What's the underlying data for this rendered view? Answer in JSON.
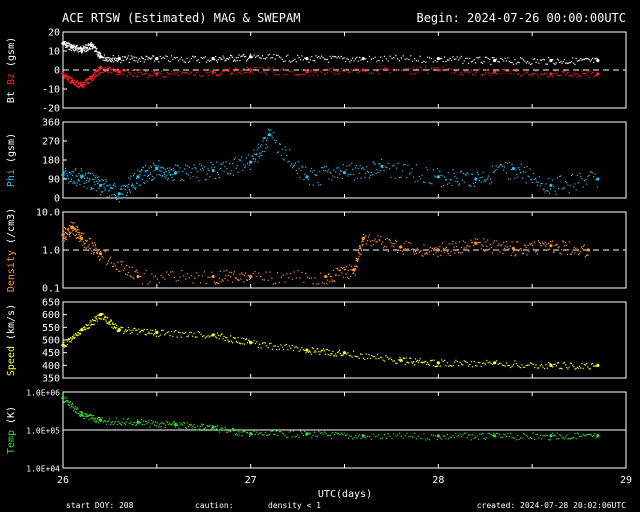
{
  "header": {
    "title": "ACE RTSW (Estimated) MAG & SWEPAM",
    "begin": "Begin: 2024-07-26 00:00:00UTC"
  },
  "footer": {
    "start_doy": "start DOY: 208",
    "caution": "caution:",
    "density_note": "density < 1",
    "created": "created: 2024-07-28 20:02:06UTC"
  },
  "colors": {
    "bt": "#ffffff",
    "bz": "#ff2020",
    "phi": "#33bbee",
    "density": "#ff9933",
    "speed": "#ffff33",
    "temp": "#33dd33",
    "frame": "#ffffff",
    "background": "#000000"
  },
  "chart_data": {
    "type": "scatter",
    "x": {
      "label": "UTC(days)",
      "range": [
        26,
        29
      ],
      "ticks": [
        "26",
        "27",
        "28",
        "29"
      ]
    },
    "panels": [
      {
        "id": "mag",
        "ylabel_parts": [
          "Bt",
          "Bz",
          "(gsm)"
        ],
        "ylim": [
          -20,
          20
        ],
        "yticks": [
          "20",
          "10",
          "0",
          "-10",
          "-20"
        ],
        "reference_line": 0,
        "series": [
          {
            "name": "Bt",
            "color": "#ffffff",
            "x": [
              26.0,
              26.05,
              26.1,
              26.15,
              26.2,
              26.3,
              26.5,
              26.8,
              27.0,
              27.3,
              27.6,
              28.0,
              28.3,
              28.6,
              28.85
            ],
            "y": [
              14,
              12,
              11,
              13,
              7,
              6,
              6,
              6,
              7,
              6,
              6,
              6,
              5,
              5,
              5
            ]
          },
          {
            "name": "Bz",
            "color": "#ff2020",
            "x": [
              26.0,
              26.05,
              26.1,
              26.15,
              26.2,
              26.3,
              26.5,
              26.8,
              27.0,
              27.3,
              27.6,
              28.0,
              28.3,
              28.6,
              28.85
            ],
            "y": [
              -2,
              -6,
              -8,
              -4,
              1,
              -1,
              -2,
              -1,
              0,
              -1,
              0,
              0,
              -1,
              -2,
              -2
            ]
          }
        ]
      },
      {
        "id": "phi",
        "ylabel_parts": [
          "Phi",
          "(gsm)"
        ],
        "ylim": [
          0,
          360
        ],
        "yticks": [
          "360",
          "270",
          "180",
          "90",
          "0"
        ],
        "series": [
          {
            "name": "Phi",
            "color": "#33bbee",
            "x": [
              26.0,
              26.1,
              26.2,
              26.3,
              26.4,
              26.5,
              26.6,
              26.8,
              27.0,
              27.1,
              27.3,
              27.5,
              27.7,
              28.0,
              28.2,
              28.4,
              28.6,
              28.85
            ],
            "y": [
              110,
              100,
              60,
              20,
              100,
              140,
              120,
              130,
              170,
              300,
              100,
              120,
              150,
              100,
              90,
              140,
              60,
              90
            ]
          }
        ]
      },
      {
        "id": "density",
        "ylabel_parts": [
          "Density",
          "(/cm3)"
        ],
        "yscale": "log",
        "ylim": [
          0.1,
          10
        ],
        "yticks": [
          "10.0",
          "1.0",
          "0.1"
        ],
        "reference_line": 1.0,
        "series": [
          {
            "name": "Density",
            "color": "#ff9933",
            "x": [
              26.0,
              26.05,
              26.1,
              26.2,
              26.4,
              26.8,
              27.0,
              27.4,
              27.55,
              27.6,
              27.8,
              28.0,
              28.2,
              28.4,
              28.6,
              28.8
            ],
            "y": [
              2.5,
              4.0,
              2.0,
              0.8,
              0.2,
              0.2,
              0.2,
              0.2,
              0.3,
              2.0,
              1.2,
              1.0,
              1.5,
              1.1,
              1.3,
              1.0
            ]
          }
        ]
      },
      {
        "id": "speed",
        "ylabel_parts": [
          "Speed",
          "(km/s)"
        ],
        "ylim": [
          350,
          650
        ],
        "yticks": [
          "650",
          "600",
          "550",
          "500",
          "450",
          "400",
          "350"
        ],
        "series": [
          {
            "name": "Speed",
            "color": "#ffff33",
            "x": [
              26.0,
              26.1,
              26.2,
              26.3,
              26.5,
              26.8,
              27.0,
              27.3,
              27.5,
              27.8,
              28.0,
              28.3,
              28.6,
              28.85
            ],
            "y": [
              480,
              540,
              600,
              540,
              530,
              520,
              490,
              460,
              450,
              420,
              410,
              410,
              400,
              400
            ]
          }
        ]
      },
      {
        "id": "temp",
        "ylabel_parts": [
          "Temp",
          "(K)"
        ],
        "yscale": "log",
        "ylim": [
          10000,
          1000000
        ],
        "yticks": [
          "1.0E+06",
          "1.0E+05",
          "1.0E+04"
        ],
        "reference_line": 100000,
        "series": [
          {
            "name": "Temp",
            "color": "#33dd33",
            "x": [
              26.0,
              26.1,
              26.2,
              26.4,
              26.6,
              26.8,
              27.0,
              27.3,
              27.6,
              28.0,
              28.3,
              28.6,
              28.85
            ],
            "y": [
              700000,
              250000,
              180000,
              160000,
              140000,
              120000,
              80000,
              80000,
              70000,
              70000,
              70000,
              70000,
              70000
            ]
          }
        ]
      }
    ]
  }
}
